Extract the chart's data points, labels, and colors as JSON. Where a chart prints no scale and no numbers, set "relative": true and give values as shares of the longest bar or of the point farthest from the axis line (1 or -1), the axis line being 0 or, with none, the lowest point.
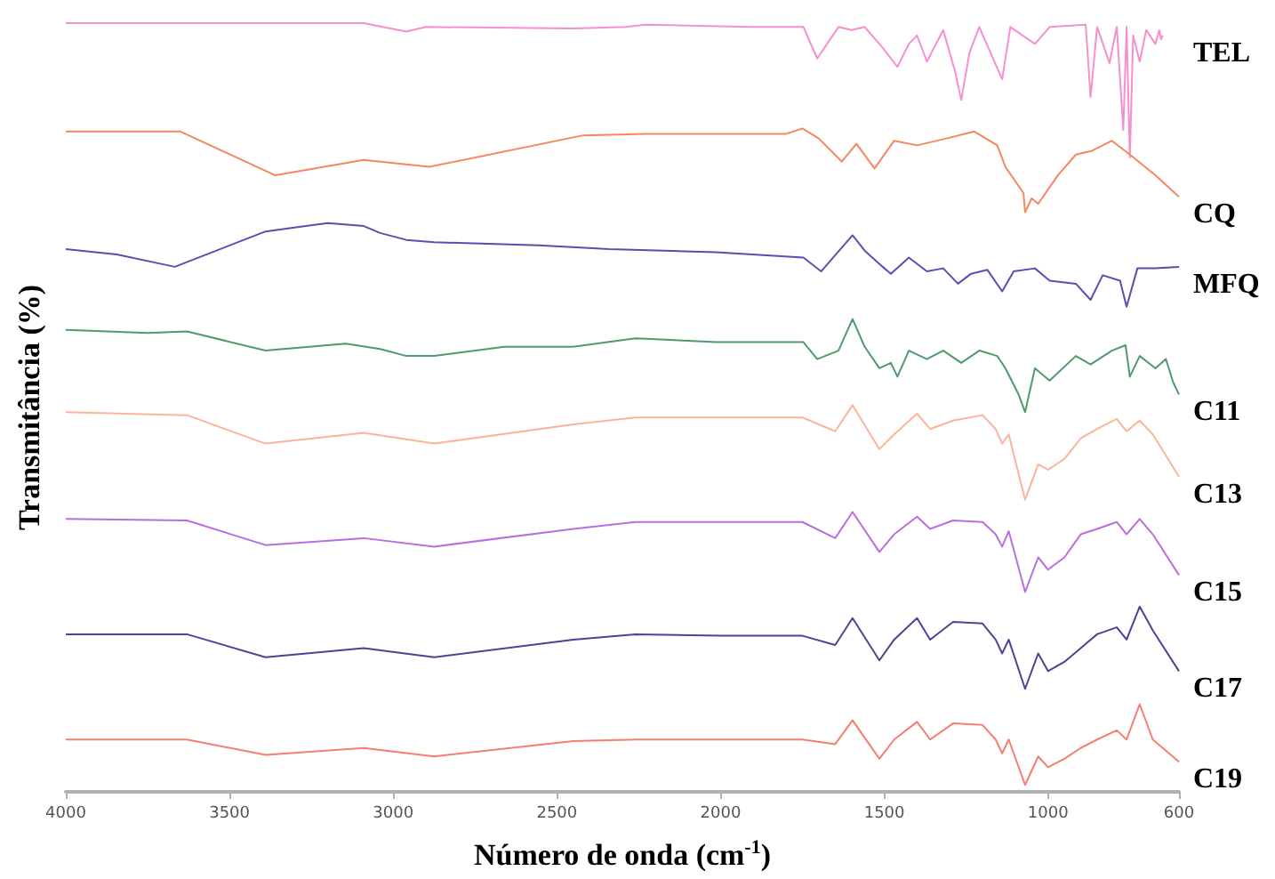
{
  "chart_data": {
    "type": "line",
    "relative": true,
    "xlabel": "Número de onda (cm$^{-1}$)",
    "ylabel": "Transmitância (%)",
    "xlim": [
      4000,
      600
    ],
    "xticks": [
      4000,
      3500,
      3000,
      2500,
      2000,
      1500,
      1000,
      600
    ],
    "grid": false,
    "legend": false,
    "marker": "none",
    "line_style": "solid",
    "x": [
      4000,
      3630,
      3390,
      3090,
      2875,
      2450,
      2260,
      2000,
      1750,
      1650,
      1597,
      1515,
      1470,
      1400,
      1360,
      1290,
      1200,
      1160,
      1140,
      1120,
      1070,
      1030,
      1000,
      950,
      900,
      850,
      790,
      760,
      720,
      680,
      600
    ],
    "series": [
      {
        "name": "TEL",
        "color": "#f58fcf",
        "x": [
          4000,
          3090,
          2960,
          2900,
          2450,
          2290,
          2230,
          1910,
          1747,
          1705,
          1640,
          1600,
          1560,
          1505,
          1460,
          1425,
          1400,
          1370,
          1320,
          1285,
          1265,
          1240,
          1210,
          1140,
          1115,
          1040,
          995,
          885,
          870,
          850,
          812,
          790,
          770,
          760,
          750,
          740,
          720,
          700,
          672,
          660,
          655,
          650
        ],
        "values": [
          1.0,
          1.0,
          0.989,
          0.995,
          0.993,
          0.995,
          0.998,
          0.995,
          0.995,
          0.954,
          0.995,
          0.991,
          0.995,
          0.968,
          0.943,
          0.973,
          0.984,
          0.95,
          0.991,
          0.939,
          0.9,
          0.961,
          0.995,
          0.927,
          0.995,
          0.973,
          0.995,
          0.998,
          0.904,
          0.995,
          0.948,
          0.995,
          0.861,
          0.995,
          0.825,
          0.984,
          0.95,
          0.991,
          0.973,
          0.991,
          0.979,
          0.984
        ]
      },
      {
        "name": "CQ",
        "color": "#f58760",
        "x": [
          4000,
          3650,
          3360,
          3090,
          2890,
          2420,
          2230,
          1800,
          1750,
          1700,
          1630,
          1585,
          1530,
          1470,
          1400,
          1310,
          1225,
          1155,
          1130,
          1075,
          1070,
          1050,
          1030,
          970,
          915,
          865,
          805,
          750,
          672,
          600
        ],
        "values": [
          0.859,
          0.859,
          0.802,
          0.822,
          0.813,
          0.854,
          0.856,
          0.856,
          0.863,
          0.85,
          0.82,
          0.843,
          0.811,
          0.847,
          0.841,
          0.85,
          0.859,
          0.841,
          0.813,
          0.779,
          0.754,
          0.772,
          0.765,
          0.802,
          0.829,
          0.834,
          0.847,
          0.829,
          0.802,
          0.774
        ]
      },
      {
        "name": "MFQ",
        "color": "#5a4fb0",
        "x": [
          4000,
          3844,
          3667,
          3390,
          3200,
          3090,
          3040,
          2960,
          2875,
          2555,
          2340,
          2015,
          1747,
          1693,
          1597,
          1560,
          1505,
          1480,
          1425,
          1370,
          1320,
          1275,
          1235,
          1185,
          1140,
          1105,
          1040,
          995,
          915,
          870,
          833,
          780,
          760,
          727,
          672,
          600
        ],
        "values": [
          0.706,
          0.699,
          0.683,
          0.729,
          0.74,
          0.736,
          0.727,
          0.718,
          0.715,
          0.711,
          0.706,
          0.702,
          0.695,
          0.677,
          0.724,
          0.704,
          0.683,
          0.674,
          0.695,
          0.677,
          0.681,
          0.661,
          0.674,
          0.679,
          0.651,
          0.677,
          0.681,
          0.665,
          0.661,
          0.64,
          0.672,
          0.665,
          0.631,
          0.681,
          0.681,
          0.683
        ]
      },
      {
        "name": "C11",
        "color": "#4f9a6a",
        "x": [
          4000,
          3750,
          3630,
          3390,
          3145,
          3040,
          2960,
          2875,
          2660,
          2450,
          2260,
          2015,
          1747,
          1705,
          1640,
          1597,
          1560,
          1515,
          1480,
          1460,
          1425,
          1370,
          1320,
          1265,
          1210,
          1155,
          1130,
          1090,
          1070,
          1040,
          995,
          915,
          870,
          805,
          763,
          750,
          720,
          672,
          640,
          618,
          600
        ],
        "values": [
          0.601,
          0.597,
          0.599,
          0.574,
          0.583,
          0.576,
          0.567,
          0.567,
          0.579,
          0.579,
          0.59,
          0.585,
          0.585,
          0.563,
          0.574,
          0.615,
          0.579,
          0.551,
          0.558,
          0.54,
          0.574,
          0.563,
          0.574,
          0.558,
          0.574,
          0.567,
          0.551,
          0.517,
          0.494,
          0.551,
          0.535,
          0.567,
          0.556,
          0.574,
          0.581,
          0.54,
          0.567,
          0.551,
          0.563,
          0.533,
          0.517
        ]
      },
      {
        "name": "C13",
        "color": "#fbb49a",
        "values": [
          0.494,
          0.49,
          0.453,
          0.467,
          0.453,
          0.478,
          0.487,
          0.487,
          0.487,
          0.469,
          0.503,
          0.446,
          0.465,
          0.492,
          0.472,
          0.483,
          0.49,
          0.472,
          0.453,
          0.465,
          0.38,
          0.426,
          0.419,
          0.433,
          0.46,
          0.472,
          0.485,
          0.469,
          0.483,
          0.465,
          0.41
        ]
      },
      {
        "name": "C15",
        "color": "#b96ee0",
        "values": [
          0.355,
          0.353,
          0.321,
          0.33,
          0.319,
          0.342,
          0.351,
          0.351,
          0.351,
          0.33,
          0.364,
          0.312,
          0.335,
          0.358,
          0.342,
          0.353,
          0.351,
          0.335,
          0.319,
          0.339,
          0.26,
          0.305,
          0.289,
          0.305,
          0.335,
          0.342,
          0.351,
          0.335,
          0.355,
          0.335,
          0.282
        ]
      },
      {
        "name": "C17",
        "color": "#4b4394",
        "values": [
          0.205,
          0.205,
          0.175,
          0.187,
          0.175,
          0.198,
          0.205,
          0.203,
          0.203,
          0.191,
          0.226,
          0.171,
          0.198,
          0.226,
          0.198,
          0.221,
          0.219,
          0.198,
          0.18,
          0.198,
          0.134,
          0.18,
          0.157,
          0.169,
          0.187,
          0.205,
          0.214,
          0.198,
          0.241,
          0.21,
          0.157
        ]
      },
      {
        "name": "C19",
        "color": "#f57f6f",
        "values": [
          0.068,
          0.068,
          0.048,
          0.057,
          0.046,
          0.066,
          0.068,
          0.068,
          0.068,
          0.062,
          0.093,
          0.043,
          0.068,
          0.091,
          0.068,
          0.089,
          0.087,
          0.068,
          0.05,
          0.068,
          0.009,
          0.046,
          0.032,
          0.043,
          0.057,
          0.068,
          0.08,
          0.068,
          0.114,
          0.068,
          0.039
        ]
      }
    ]
  }
}
